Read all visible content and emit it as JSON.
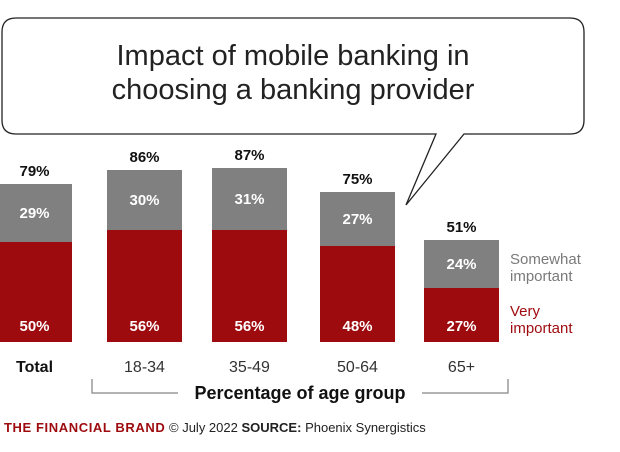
{
  "chart_data": {
    "type": "bar",
    "stacked": true,
    "title": "Impact of mobile banking in choosing a banking provider",
    "title_lines": [
      "Impact of mobile banking in",
      "choosing a banking provider"
    ],
    "xlabel": "Percentage of age group",
    "categories": [
      "Total",
      "18-34",
      "35-49",
      "50-64",
      "65+"
    ],
    "totals": [
      79,
      86,
      87,
      75,
      51
    ],
    "total_labels": [
      "79%",
      "86%",
      "87%",
      "75%",
      "51%"
    ],
    "series": [
      {
        "name": "Very important",
        "legend_lines": [
          "Very",
          "important"
        ],
        "color": "#9e0b0f",
        "values": [
          50,
          56,
          56,
          48,
          27
        ],
        "labels": [
          "50%",
          "56%",
          "56%",
          "48%",
          "27%"
        ]
      },
      {
        "name": "Somewhat important",
        "legend_lines": [
          "Somewhat",
          "important"
        ],
        "color": "#808080",
        "values": [
          29,
          30,
          31,
          27,
          24
        ],
        "labels": [
          "29%",
          "30%",
          "31%",
          "27%",
          "24%"
        ]
      }
    ],
    "ylim": [
      0,
      87
    ],
    "grid": false,
    "legend_position": "right"
  },
  "footer": {
    "brand": "THE FINANCIAL BRAND",
    "date": "© July 2022",
    "source_label": "SOURCE:",
    "source": "Phoenix Synergistics"
  },
  "colors": {
    "brand": "#9e0b0f",
    "somewhat": "#808080",
    "legend_somewhat_text": "#7a7a7a",
    "bubble_stroke": "#222222"
  }
}
